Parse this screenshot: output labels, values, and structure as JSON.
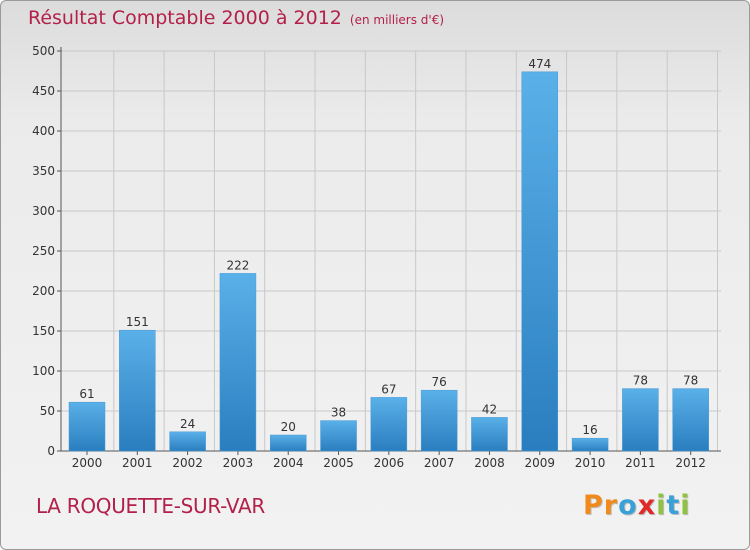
{
  "header": {
    "title": "Résultat Comptable 2000 à 2012",
    "subtitle": "(en milliers d'€)"
  },
  "footer": {
    "commune": "LA ROQUETTE-SUR-VAR",
    "brand": "Proxiti",
    "brand_colors": [
      "#f08a1c",
      "#f08a1c",
      "#3aa0d8",
      "#e02a2a",
      "#8fc23f",
      "#3aa0d8",
      "#8fc23f"
    ]
  },
  "colors": {
    "bar_top": "#5ab0e8",
    "bar_bottom": "#2a7ebf",
    "title": "#b3204a",
    "grid": "#c8c8c8",
    "axis": "#555555"
  },
  "chart_data": {
    "type": "bar",
    "title": "Résultat Comptable 2000 à 2012",
    "subtitle": "(en milliers d'€)",
    "categories": [
      "2000",
      "2001",
      "2002",
      "2003",
      "2004",
      "2005",
      "2006",
      "2007",
      "2008",
      "2009",
      "2010",
      "2011",
      "2012"
    ],
    "values": [
      61,
      151,
      24,
      222,
      20,
      38,
      67,
      76,
      42,
      474,
      16,
      78,
      78
    ],
    "xlabel": "",
    "ylabel": "",
    "ylim": [
      0,
      500
    ],
    "yticks": [
      0,
      50,
      100,
      150,
      200,
      250,
      300,
      350,
      400,
      450,
      500
    ],
    "grid": true,
    "data_labels": true
  }
}
